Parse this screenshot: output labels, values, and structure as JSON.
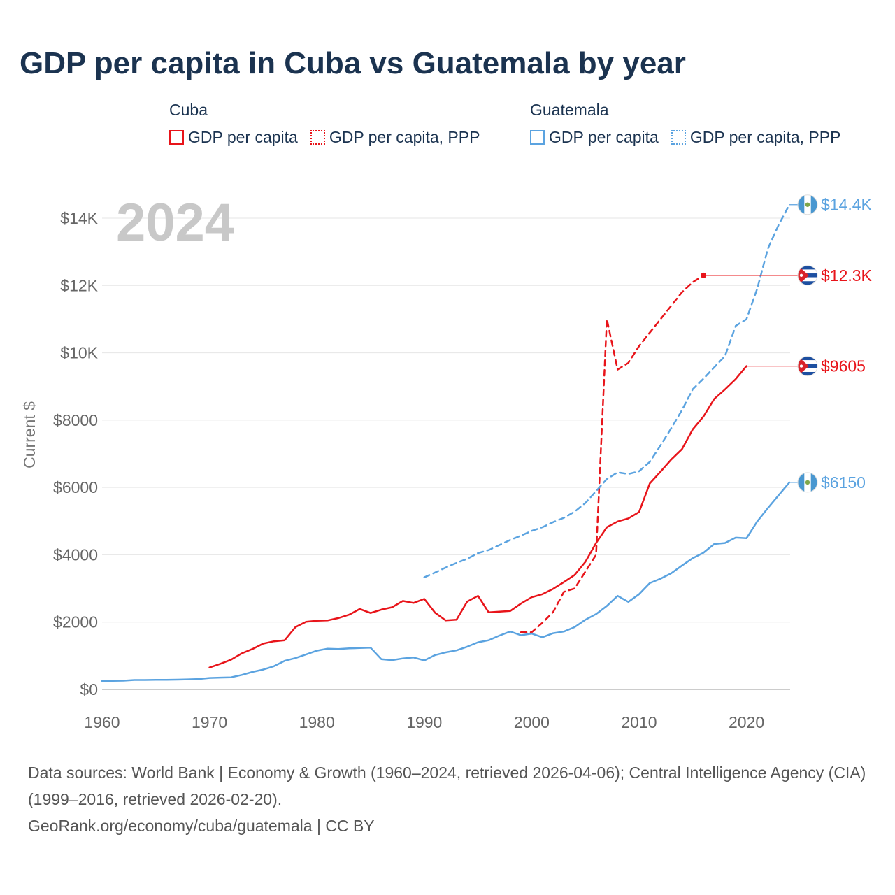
{
  "title": "GDP per capita in Cuba vs Guatemala by year",
  "legend": {
    "groups": [
      {
        "name": "Cuba",
        "color": "#e8141a",
        "items": [
          {
            "label": "GDP per capita",
            "style": "solid"
          },
          {
            "label": "GDP per capita, PPP",
            "style": "dotted"
          }
        ]
      },
      {
        "name": "Guatemala",
        "color": "#5ba3e0",
        "items": [
          {
            "label": "GDP per capita",
            "style": "solid"
          },
          {
            "label": "GDP per capita, PPP",
            "style": "dotted"
          }
        ]
      }
    ]
  },
  "chart_data": {
    "type": "line",
    "year_watermark": "2024",
    "ylabel": "Current $",
    "xlim": [
      1960,
      2024
    ],
    "ylim": [
      0,
      14000
    ],
    "x_ticks": [
      1960,
      1970,
      1980,
      1990,
      2000,
      2010,
      2020
    ],
    "y_ticks": [
      {
        "value": 0,
        "label": "$0"
      },
      {
        "value": 2000,
        "label": "$2000"
      },
      {
        "value": 4000,
        "label": "$4000"
      },
      {
        "value": 6000,
        "label": "$6000"
      },
      {
        "value": 8000,
        "label": "$8000"
      },
      {
        "value": 10000,
        "label": "$10K"
      },
      {
        "value": 12000,
        "label": "$12K"
      },
      {
        "value": 14000,
        "label": "$14K"
      }
    ],
    "series": [
      {
        "name": "Cuba GDP per capita",
        "country": "cuba",
        "color": "#e8141a",
        "dash": "solid",
        "end_label": "$9605",
        "end_value": 9605,
        "x": [
          1970,
          1971,
          1972,
          1973,
          1974,
          1975,
          1976,
          1977,
          1978,
          1979,
          1980,
          1981,
          1982,
          1983,
          1984,
          1985,
          1986,
          1987,
          1988,
          1989,
          1990,
          1991,
          1992,
          1993,
          1994,
          1995,
          1996,
          1997,
          1998,
          1999,
          2000,
          2001,
          2002,
          2003,
          2004,
          2005,
          2006,
          2007,
          2008,
          2009,
          2010,
          2011,
          2012,
          2013,
          2014,
          2015,
          2016,
          2017,
          2018,
          2019,
          2020
        ],
        "y": [
          650,
          760,
          880,
          1070,
          1200,
          1360,
          1430,
          1460,
          1850,
          2010,
          2040,
          2050,
          2120,
          2220,
          2390,
          2270,
          2370,
          2440,
          2630,
          2570,
          2690,
          2280,
          2050,
          2070,
          2610,
          2780,
          2290,
          2310,
          2330,
          2550,
          2740,
          2830,
          2990,
          3190,
          3400,
          3790,
          4350,
          4820,
          4990,
          5080,
          5270,
          6120,
          6470,
          6830,
          7140,
          7730,
          8110,
          8630,
          8910,
          9220,
          9605
        ]
      },
      {
        "name": "Cuba GDP per capita, PPP",
        "country": "cuba",
        "color": "#e8141a",
        "dash": "dashed",
        "end_label": "$12.3K",
        "end_value": 12300,
        "x": [
          1999,
          2000,
          2001,
          2002,
          2003,
          2004,
          2005,
          2006,
          2007,
          2008,
          2009,
          2010,
          2011,
          2012,
          2013,
          2014,
          2015,
          2016
        ],
        "y": [
          1700,
          1700,
          1980,
          2300,
          2900,
          3000,
          3500,
          4000,
          11000,
          9500,
          9700,
          10200,
          10600,
          11000,
          11400,
          11800,
          12100,
          12300
        ]
      },
      {
        "name": "Guatemala GDP per capita",
        "country": "guatemala",
        "color": "#5ba3e0",
        "dash": "solid",
        "end_label": "$6150",
        "end_value": 6150,
        "x": [
          1960,
          1961,
          1962,
          1963,
          1964,
          1965,
          1966,
          1967,
          1968,
          1969,
          1970,
          1971,
          1972,
          1973,
          1974,
          1975,
          1976,
          1977,
          1978,
          1979,
          1980,
          1981,
          1982,
          1983,
          1984,
          1985,
          1986,
          1987,
          1988,
          1989,
          1990,
          1991,
          1992,
          1993,
          1994,
          1995,
          1996,
          1997,
          1998,
          1999,
          2000,
          2001,
          2002,
          2003,
          2004,
          2005,
          2006,
          2007,
          2008,
          2009,
          2010,
          2011,
          2012,
          2013,
          2014,
          2015,
          2016,
          2017,
          2018,
          2019,
          2020,
          2021,
          2022,
          2023,
          2024
        ],
        "y": [
          250,
          255,
          260,
          280,
          280,
          285,
          285,
          290,
          300,
          310,
          340,
          350,
          360,
          430,
          520,
          590,
          690,
          850,
          930,
          1040,
          1150,
          1210,
          1200,
          1220,
          1230,
          1240,
          900,
          870,
          920,
          950,
          860,
          1020,
          1100,
          1160,
          1270,
          1400,
          1460,
          1600,
          1720,
          1610,
          1660,
          1550,
          1670,
          1720,
          1850,
          2070,
          2240,
          2480,
          2780,
          2600,
          2830,
          3160,
          3290,
          3450,
          3680,
          3900,
          4060,
          4320,
          4350,
          4510,
          4490,
          4990,
          5390,
          5770,
          6150
        ]
      },
      {
        "name": "Guatemala GDP per capita, PPP",
        "country": "guatemala",
        "color": "#5ba3e0",
        "dash": "dashed",
        "end_label": "$14.4K",
        "end_value": 14400,
        "x": [
          1990,
          1991,
          1992,
          1993,
          1994,
          1995,
          1996,
          1997,
          1998,
          1999,
          2000,
          2001,
          2002,
          2003,
          2004,
          2005,
          2006,
          2007,
          2008,
          2009,
          2010,
          2011,
          2012,
          2013,
          2014,
          2015,
          2016,
          2017,
          2018,
          2019,
          2020,
          2021,
          2022,
          2023,
          2024
        ],
        "y": [
          3330,
          3470,
          3620,
          3760,
          3880,
          4050,
          4140,
          4290,
          4440,
          4570,
          4710,
          4820,
          4970,
          5100,
          5280,
          5540,
          5890,
          6250,
          6450,
          6400,
          6480,
          6760,
          7250,
          7760,
          8300,
          8920,
          9230,
          9570,
          9900,
          10800,
          11000,
          11900,
          13100,
          13800,
          14400
        ]
      }
    ]
  },
  "footer": {
    "sources": "Data sources: World Bank | Economy & Growth (1960–2024, retrieved 2026-04-06); Central Intelligence Agency (CIA) (1999–2016, retrieved 2026-02-20).",
    "site": "GeoRank.org/economy/cuba/guatemala | CC BY"
  },
  "icons": {
    "cuba_flag": "cuba-flag-icon",
    "guatemala_flag": "guatemala-flag-icon"
  }
}
